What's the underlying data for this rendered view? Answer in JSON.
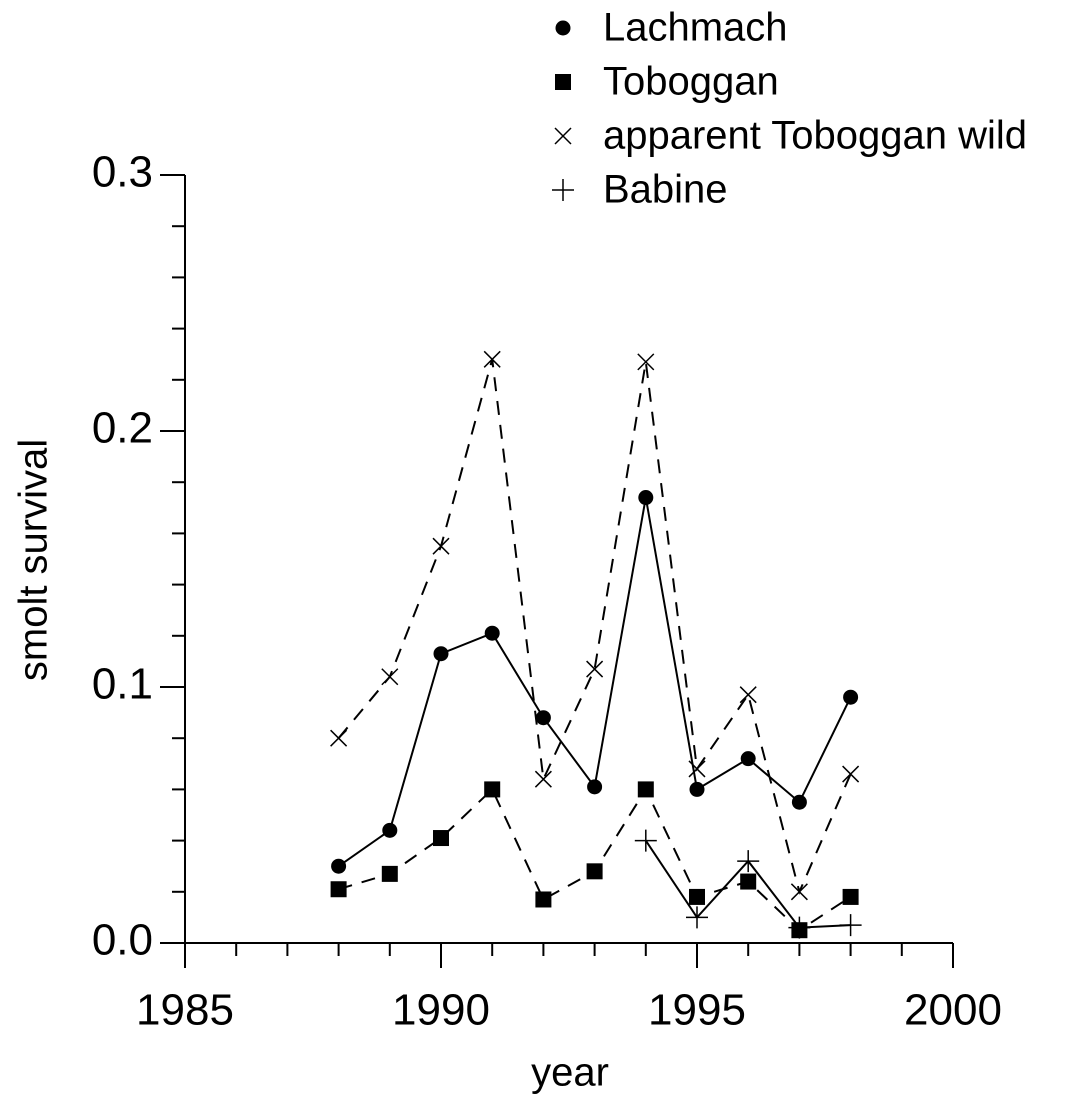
{
  "chart_data": {
    "type": "line",
    "x_label": "year",
    "y_label": "smolt survival",
    "x": [
      1988,
      1989,
      1990,
      1991,
      1992,
      1993,
      1994,
      1995,
      1996,
      1997,
      1998
    ],
    "series": [
      {
        "name": "Lachmach",
        "color": "#000000",
        "marker": "circle",
        "dash": "solid",
        "values": [
          0.03,
          0.044,
          0.113,
          0.121,
          0.088,
          0.061,
          0.174,
          0.06,
          0.072,
          0.055,
          0.096
        ]
      },
      {
        "name": "Toboggan",
        "color": "#000000",
        "marker": "square",
        "dash": "dashed",
        "values": [
          0.021,
          0.027,
          0.041,
          0.06,
          0.017,
          0.028,
          0.06,
          0.018,
          0.024,
          0.005,
          0.018
        ]
      },
      {
        "name": "apparent Toboggan wild",
        "color": "#000000",
        "marker": "x",
        "dash": "dashed",
        "values": [
          0.08,
          0.104,
          0.155,
          0.228,
          0.064,
          0.107,
          0.227,
          0.068,
          0.097,
          0.02,
          0.066
        ]
      },
      {
        "name": "Babine",
        "color": "#000000",
        "marker": "plus",
        "dash": "solid",
        "values": [
          null,
          null,
          null,
          null,
          null,
          null,
          0.04,
          0.01,
          0.032,
          0.006,
          0.007
        ]
      }
    ],
    "xlim": [
      1985,
      2000
    ],
    "ylim": [
      0,
      0.3
    ],
    "xticks": [
      1985,
      1990,
      1995,
      2000
    ],
    "xminor_ticks": [
      1986,
      1987,
      1988,
      1989,
      1991,
      1992,
      1993,
      1994,
      1996,
      1997,
      1998,
      1999
    ],
    "yticks": [
      {
        "value": 0,
        "label": "0.0"
      },
      0.1,
      0.2,
      0.3
    ],
    "yminor_ticks": [
      0.02,
      0.04,
      0.06,
      0.08,
      0.12,
      0.14,
      0.16,
      0.18,
      0.22,
      0.24,
      0.26,
      0.28
    ],
    "legend": "top"
  }
}
